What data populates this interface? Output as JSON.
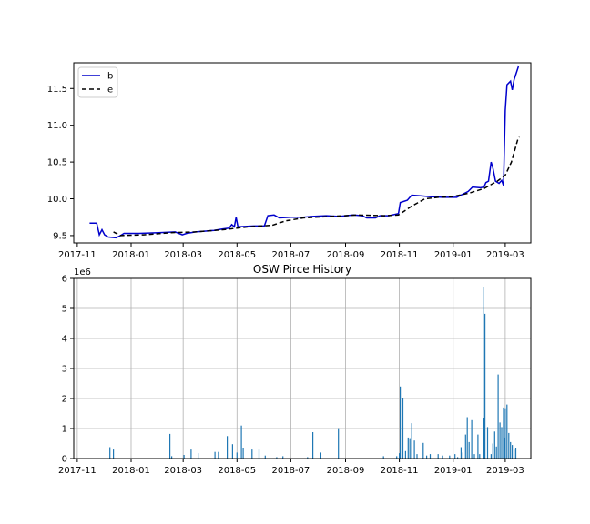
{
  "chart_data": [
    {
      "type": "line",
      "title": "",
      "xlabel": "",
      "ylabel": "",
      "xlim": [
        "2017-10-28",
        "2019-03-30"
      ],
      "ylim": [
        9.4,
        11.85
      ],
      "x_ticks": [
        "2017-11",
        "2018-01",
        "2018-03",
        "2018-05",
        "2018-07",
        "2018-09",
        "2018-11",
        "2019-01",
        "2019-03"
      ],
      "y_ticks": [
        "9.5",
        "10.0",
        "10.5",
        "11.0",
        "11.5"
      ],
      "grid": false,
      "legend": "top-left",
      "series": [
        {
          "name": "b",
          "color": "#0000cc",
          "style": "solid",
          "points": [
            [
              "2017-11-15",
              9.67
            ],
            [
              "2017-11-23",
              9.67
            ],
            [
              "2017-11-26",
              9.51
            ],
            [
              "2017-11-29",
              9.58
            ],
            [
              "2017-12-02",
              9.51
            ],
            [
              "2017-12-06",
              9.48
            ],
            [
              "2017-12-15",
              9.47
            ],
            [
              "2017-12-20",
              9.5
            ],
            [
              "2017-12-24",
              9.53
            ],
            [
              "2018-01-10",
              9.53
            ],
            [
              "2018-02-01",
              9.54
            ],
            [
              "2018-02-20",
              9.55
            ],
            [
              "2018-02-28",
              9.51
            ],
            [
              "2018-03-05",
              9.53
            ],
            [
              "2018-03-15",
              9.55
            ],
            [
              "2018-03-25",
              9.56
            ],
            [
              "2018-04-05",
              9.57
            ],
            [
              "2018-04-15",
              9.59
            ],
            [
              "2018-04-22",
              9.6
            ],
            [
              "2018-04-25",
              9.65
            ],
            [
              "2018-04-28",
              9.62
            ],
            [
              "2018-04-30",
              9.75
            ],
            [
              "2018-05-02",
              9.62
            ],
            [
              "2018-05-20",
              9.63
            ],
            [
              "2018-06-01",
              9.63
            ],
            [
              "2018-06-05",
              9.77
            ],
            [
              "2018-06-12",
              9.78
            ],
            [
              "2018-06-18",
              9.74
            ],
            [
              "2018-07-01",
              9.75
            ],
            [
              "2018-07-15",
              9.75
            ],
            [
              "2018-07-25",
              9.76
            ],
            [
              "2018-08-10",
              9.77
            ],
            [
              "2018-08-25",
              9.76
            ],
            [
              "2018-09-10",
              9.78
            ],
            [
              "2018-09-20",
              9.77
            ],
            [
              "2018-09-25",
              9.74
            ],
            [
              "2018-10-05",
              9.74
            ],
            [
              "2018-10-10",
              9.77
            ],
            [
              "2018-10-20",
              9.77
            ],
            [
              "2018-10-31",
              9.8
            ],
            [
              "2018-11-02",
              9.95
            ],
            [
              "2018-11-10",
              9.98
            ],
            [
              "2018-11-15",
              10.05
            ],
            [
              "2018-11-25",
              10.04
            ],
            [
              "2018-12-05",
              10.03
            ],
            [
              "2018-12-20",
              10.02
            ],
            [
              "2019-01-05",
              10.02
            ],
            [
              "2019-01-18",
              10.1
            ],
            [
              "2019-01-23",
              10.16
            ],
            [
              "2019-02-01",
              10.15
            ],
            [
              "2019-02-05",
              10.16
            ],
            [
              "2019-02-07",
              10.22
            ],
            [
              "2019-02-10",
              10.24
            ],
            [
              "2019-02-13",
              10.5
            ],
            [
              "2019-02-15",
              10.42
            ],
            [
              "2019-02-18",
              10.24
            ],
            [
              "2019-02-22",
              10.21
            ],
            [
              "2019-02-25",
              10.25
            ],
            [
              "2019-02-27",
              10.18
            ],
            [
              "2019-03-01",
              11.2
            ],
            [
              "2019-03-03",
              11.55
            ],
            [
              "2019-03-07",
              11.6
            ],
            [
              "2019-03-09",
              11.48
            ],
            [
              "2019-03-11",
              11.62
            ],
            [
              "2019-03-16",
              11.8
            ]
          ]
        },
        {
          "name": "e",
          "color": "#000000",
          "style": "dashed",
          "points": [
            [
              "2017-12-12",
              9.55
            ],
            [
              "2017-12-20",
              9.5
            ],
            [
              "2018-01-15",
              9.51
            ],
            [
              "2018-02-15",
              9.54
            ],
            [
              "2018-03-15",
              9.55
            ],
            [
              "2018-04-15",
              9.58
            ],
            [
              "2018-05-15",
              9.62
            ],
            [
              "2018-06-10",
              9.64
            ],
            [
              "2018-06-25",
              9.7
            ],
            [
              "2018-07-15",
              9.74
            ],
            [
              "2018-08-15",
              9.76
            ],
            [
              "2018-09-15",
              9.78
            ],
            [
              "2018-10-15",
              9.77
            ],
            [
              "2018-10-31",
              9.78
            ],
            [
              "2018-11-15",
              9.9
            ],
            [
              "2018-11-30",
              10.0
            ],
            [
              "2018-12-15",
              10.02
            ],
            [
              "2019-01-01",
              10.03
            ],
            [
              "2019-01-20",
              10.08
            ],
            [
              "2019-02-05",
              10.14
            ],
            [
              "2019-02-20",
              10.24
            ],
            [
              "2019-03-01",
              10.32
            ],
            [
              "2019-03-08",
              10.5
            ],
            [
              "2019-03-15",
              10.8
            ],
            [
              "2019-03-17",
              10.84
            ]
          ]
        }
      ]
    },
    {
      "type": "bar",
      "title": "OSW Pirce History",
      "xlabel": "",
      "ylabel": "",
      "offset_label": "1e6",
      "xlim": [
        "2017-10-28",
        "2019-03-30"
      ],
      "ylim": [
        0,
        6
      ],
      "x_ticks": [
        "2017-11",
        "2018-01",
        "2018-03",
        "2018-05",
        "2018-07",
        "2018-09",
        "2018-11",
        "2019-01",
        "2019-03"
      ],
      "y_ticks": [
        "0",
        "1",
        "2",
        "3",
        "4",
        "5",
        "6"
      ],
      "grid": true,
      "color": "#1f77b4",
      "bars": [
        [
          "2017-12-08",
          0.38
        ],
        [
          "2017-12-12",
          0.3
        ],
        [
          "2018-02-14",
          0.82
        ],
        [
          "2018-02-16",
          0.08
        ],
        [
          "2018-03-02",
          0.12
        ],
        [
          "2018-03-10",
          0.3
        ],
        [
          "2018-03-18",
          0.18
        ],
        [
          "2018-04-06",
          0.22
        ],
        [
          "2018-04-10",
          0.22
        ],
        [
          "2018-04-20",
          0.75
        ],
        [
          "2018-04-26",
          0.48
        ],
        [
          "2018-05-01",
          0.2
        ],
        [
          "2018-05-06",
          1.1
        ],
        [
          "2018-05-08",
          0.35
        ],
        [
          "2018-05-18",
          0.3
        ],
        [
          "2018-05-26",
          0.3
        ],
        [
          "2018-06-02",
          0.1
        ],
        [
          "2018-06-15",
          0.05
        ],
        [
          "2018-06-22",
          0.08
        ],
        [
          "2018-07-20",
          0.05
        ],
        [
          "2018-07-26",
          0.88
        ],
        [
          "2018-08-04",
          0.2
        ],
        [
          "2018-08-24",
          0.98
        ],
        [
          "2018-10-14",
          0.08
        ],
        [
          "2018-10-29",
          0.08
        ],
        [
          "2018-11-01",
          0.18
        ],
        [
          "2018-11-02",
          2.4
        ],
        [
          "2018-11-05",
          2.0
        ],
        [
          "2018-11-08",
          0.25
        ],
        [
          "2018-11-11",
          0.7
        ],
        [
          "2018-11-13",
          0.65
        ],
        [
          "2018-11-15",
          1.18
        ],
        [
          "2018-11-18",
          0.6
        ],
        [
          "2018-11-21",
          0.15
        ],
        [
          "2018-11-28",
          0.52
        ],
        [
          "2018-12-02",
          0.1
        ],
        [
          "2018-12-06",
          0.15
        ],
        [
          "2018-12-15",
          0.15
        ],
        [
          "2018-12-20",
          0.1
        ],
        [
          "2018-12-28",
          0.1
        ],
        [
          "2019-01-03",
          0.15
        ],
        [
          "2019-01-06",
          0.05
        ],
        [
          "2019-01-10",
          0.38
        ],
        [
          "2019-01-12",
          0.2
        ],
        [
          "2019-01-15",
          0.8
        ],
        [
          "2019-01-17",
          1.38
        ],
        [
          "2019-01-19",
          0.55
        ],
        [
          "2019-01-22",
          1.28
        ],
        [
          "2019-01-25",
          0.15
        ],
        [
          "2019-01-29",
          0.8
        ],
        [
          "2019-01-31",
          0.15
        ],
        [
          "2019-02-04",
          5.7
        ],
        [
          "2019-02-06",
          4.82
        ],
        [
          "2019-02-05",
          1.35
        ],
        [
          "2019-02-09",
          1.05
        ],
        [
          "2019-02-13",
          0.15
        ],
        [
          "2019-02-15",
          0.5
        ],
        [
          "2019-02-17",
          0.9
        ],
        [
          "2019-02-19",
          0.4
        ],
        [
          "2019-02-21",
          2.8
        ],
        [
          "2019-02-23",
          1.2
        ],
        [
          "2019-02-25",
          1.05
        ],
        [
          "2019-02-27",
          1.7
        ],
        [
          "2019-02-28",
          0.7
        ],
        [
          "2019-03-01",
          1.65
        ],
        [
          "2019-03-03",
          1.8
        ],
        [
          "2019-03-05",
          0.85
        ],
        [
          "2019-03-07",
          0.55
        ],
        [
          "2019-03-09",
          0.45
        ],
        [
          "2019-03-11",
          0.3
        ],
        [
          "2019-03-13",
          0.35
        ]
      ]
    }
  ]
}
